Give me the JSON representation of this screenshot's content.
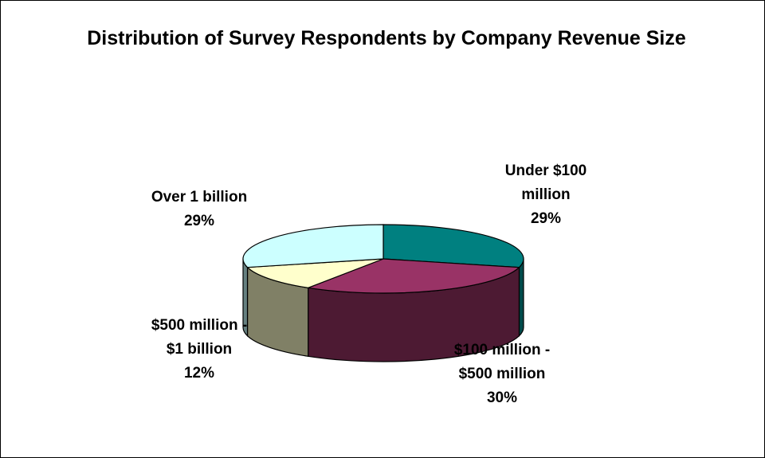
{
  "chart_data": {
    "type": "pie",
    "title": "Distribution of Survey Respondents by Company Revenue Size",
    "slices": [
      {
        "name": "Under $100 million",
        "value": 29,
        "percent_label": "29%",
        "color": "#008080",
        "side_color": "#004c4c"
      },
      {
        "name": "$100 million - $500 million",
        "value": 30,
        "percent_label": "30%",
        "color": "#993366",
        "side_color": "#4d1a33"
      },
      {
        "name": "$500 million - $1 billion",
        "value": 12,
        "percent_label": "12%",
        "color": "#ffffcc",
        "side_color": "#808066"
      },
      {
        "name": "Over 1 billion",
        "value": 29,
        "percent_label": "29%",
        "color": "#ccffff",
        "side_color": "#668080"
      }
    ],
    "labels": [
      {
        "lines": [
          "Under $100",
          "million"
        ],
        "percent": "29%"
      },
      {
        "lines": [
          "$100 million -",
          "$500 million"
        ],
        "percent": "30%"
      },
      {
        "lines": [
          "$500 million -",
          "$1 billion"
        ],
        "percent": "12%"
      },
      {
        "lines": [
          "Over 1 billion"
        ],
        "percent": "29%"
      }
    ],
    "legend": "none"
  }
}
